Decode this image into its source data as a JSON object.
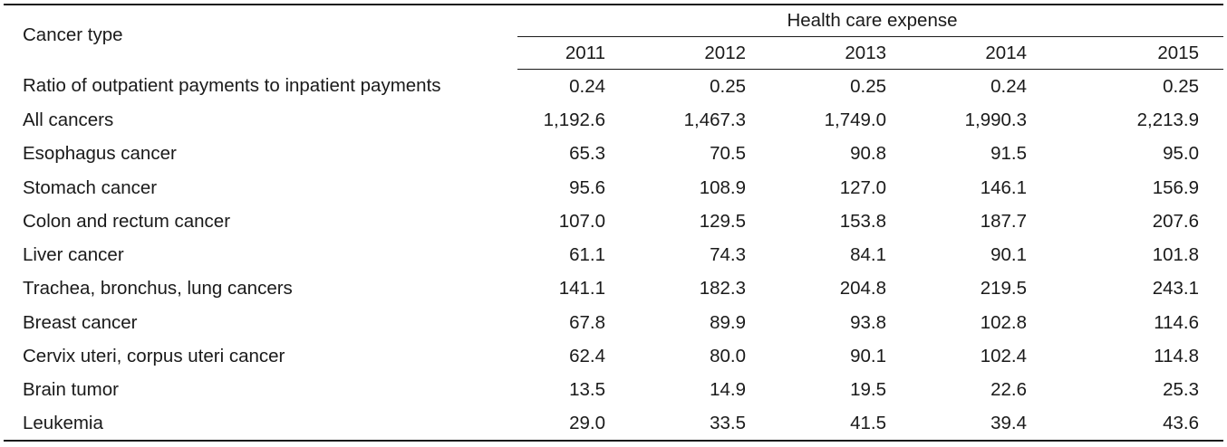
{
  "header": {
    "row_label": "Cancer type",
    "group_label": "Health care expense",
    "years": [
      "2011",
      "2012",
      "2013",
      "2014",
      "2015"
    ]
  },
  "rows": [
    {
      "label": "Ratio of outpatient payments to inpatient payments",
      "values": [
        "0.24",
        "0.25",
        "0.25",
        "0.24",
        "0.25"
      ]
    },
    {
      "label": "All cancers",
      "values": [
        "1,192.6",
        "1,467.3",
        "1,749.0",
        "1,990.3",
        "2,213.9"
      ]
    },
    {
      "label": "Esophagus cancer",
      "values": [
        "65.3",
        "70.5",
        "90.8",
        "91.5",
        "95.0"
      ]
    },
    {
      "label": "Stomach cancer",
      "values": [
        "95.6",
        "108.9",
        "127.0",
        "146.1",
        "156.9"
      ]
    },
    {
      "label": "Colon and rectum cancer",
      "values": [
        "107.0",
        "129.5",
        "153.8",
        "187.7",
        "207.6"
      ]
    },
    {
      "label": "Liver cancer",
      "values": [
        "61.1",
        "74.3",
        "84.1",
        "90.1",
        "101.8"
      ]
    },
    {
      "label": "Trachea, bronchus, lung cancers",
      "values": [
        "141.1",
        "182.3",
        "204.8",
        "219.5",
        "243.1"
      ]
    },
    {
      "label": "Breast cancer",
      "values": [
        "67.8",
        "89.9",
        "93.8",
        "102.8",
        "114.6"
      ]
    },
    {
      "label": "Cervix uteri, corpus uteri cancer",
      "values": [
        "62.4",
        "80.0",
        "90.1",
        "102.4",
        "114.8"
      ]
    },
    {
      "label": "Brain tumor",
      "values": [
        "13.5",
        "14.9",
        "19.5",
        "22.6",
        "25.3"
      ]
    },
    {
      "label": "Leukemia",
      "values": [
        "29.0",
        "33.5",
        "41.5",
        "39.4",
        "43.6"
      ]
    }
  ]
}
